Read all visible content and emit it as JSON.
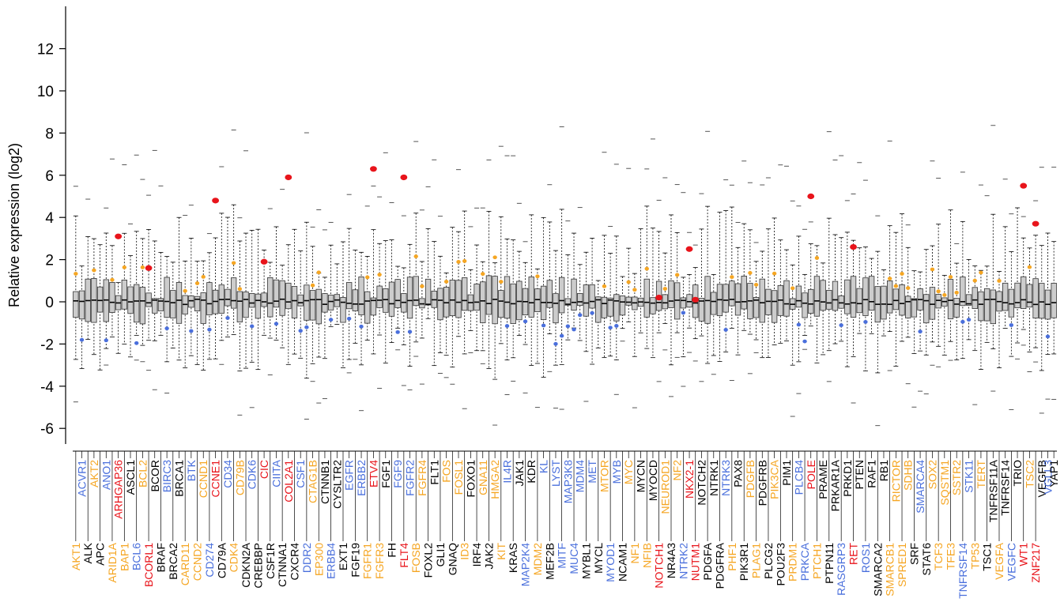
{
  "colors": {
    "black": "#000000",
    "blue": "#4a6fdc",
    "orange": "#f5a623",
    "red": "#e8141b",
    "box_fill": "#cccccc",
    "box_stroke": "#333333"
  },
  "chart_data": {
    "type": "box",
    "title": "",
    "xlabel": "",
    "ylabel": "Relative expression (log2)",
    "ylim": [
      -7,
      14
    ],
    "yticks": [
      -6,
      -4,
      -2,
      0,
      2,
      4,
      6,
      8,
      10,
      12
    ],
    "grid": false,
    "legend": "none",
    "genes_top": [
      {
        "name": "ACVR1",
        "color": "blue"
      },
      {
        "name": "AKT2",
        "color": "orange"
      },
      {
        "name": "ANO1",
        "color": "blue"
      },
      {
        "name": "ARHGAP36",
        "color": "red"
      },
      {
        "name": "ASCL1",
        "color": "black"
      },
      {
        "name": "BCL2",
        "color": "orange"
      },
      {
        "name": "BCOR",
        "color": "black"
      },
      {
        "name": "BIRC3",
        "color": "blue"
      },
      {
        "name": "BRCA1",
        "color": "black"
      },
      {
        "name": "BTK",
        "color": "blue"
      },
      {
        "name": "CCND1",
        "color": "orange"
      },
      {
        "name": "CCNE1",
        "color": "red"
      },
      {
        "name": "CD34",
        "color": "blue"
      },
      {
        "name": "CD79B",
        "color": "orange"
      },
      {
        "name": "CDK6",
        "color": "blue"
      },
      {
        "name": "CIC",
        "color": "red"
      },
      {
        "name": "CIITA",
        "color": "blue"
      },
      {
        "name": "COL2A1",
        "color": "red"
      },
      {
        "name": "CSF1",
        "color": "blue"
      },
      {
        "name": "CTAG1B",
        "color": "orange"
      },
      {
        "name": "CTNNB1",
        "color": "black"
      },
      {
        "name": "CYSLTR2",
        "color": "black"
      },
      {
        "name": "EGFR",
        "color": "blue"
      },
      {
        "name": "ERBB2",
        "color": "blue"
      },
      {
        "name": "ETV4",
        "color": "red"
      },
      {
        "name": "FGF1",
        "color": "black"
      },
      {
        "name": "FGF9",
        "color": "blue"
      },
      {
        "name": "FGFR2",
        "color": "blue"
      },
      {
        "name": "FGFR4",
        "color": "orange"
      },
      {
        "name": "FLT1",
        "color": "black"
      },
      {
        "name": "FOS",
        "color": "orange"
      },
      {
        "name": "FOSL1",
        "color": "orange"
      },
      {
        "name": "FOXO1",
        "color": "black"
      },
      {
        "name": "GNA11",
        "color": "orange"
      },
      {
        "name": "HMGA2",
        "color": "orange"
      },
      {
        "name": "IL4R",
        "color": "blue"
      },
      {
        "name": "JAK1",
        "color": "black"
      },
      {
        "name": "KDR",
        "color": "black"
      },
      {
        "name": "KL",
        "color": "blue"
      },
      {
        "name": "LYST",
        "color": "blue"
      },
      {
        "name": "MAP3K8",
        "color": "blue"
      },
      {
        "name": "MDM4",
        "color": "blue"
      },
      {
        "name": "MET",
        "color": "blue"
      },
      {
        "name": "MTOR",
        "color": "orange"
      },
      {
        "name": "MYB",
        "color": "blue"
      },
      {
        "name": "MYC",
        "color": "orange"
      },
      {
        "name": "MYCN",
        "color": "black"
      },
      {
        "name": "MYOCD",
        "color": "black"
      },
      {
        "name": "NEUROD1",
        "color": "orange"
      },
      {
        "name": "NF2",
        "color": "orange"
      },
      {
        "name": "NKX2-1",
        "color": "red"
      },
      {
        "name": "NOTCH2",
        "color": "black"
      },
      {
        "name": "NTRK1",
        "color": "black"
      },
      {
        "name": "NTRK3",
        "color": "blue"
      },
      {
        "name": "PAX8",
        "color": "black"
      },
      {
        "name": "PDGFB",
        "color": "orange"
      },
      {
        "name": "PDGFRB",
        "color": "black"
      },
      {
        "name": "PIK3CA",
        "color": "orange"
      },
      {
        "name": "PIM1",
        "color": "black"
      },
      {
        "name": "PLCB4",
        "color": "blue"
      },
      {
        "name": "POLE",
        "color": "red"
      },
      {
        "name": "PRAME",
        "color": "black"
      },
      {
        "name": "PRKAR1A",
        "color": "black"
      },
      {
        "name": "PRKD1",
        "color": "black"
      },
      {
        "name": "PTEN",
        "color": "black"
      },
      {
        "name": "RAF1",
        "color": "black"
      },
      {
        "name": "RB1",
        "color": "black"
      },
      {
        "name": "RICTOR",
        "color": "orange"
      },
      {
        "name": "SDHB",
        "color": "orange"
      },
      {
        "name": "SMARCA4",
        "color": "blue"
      },
      {
        "name": "SOX2",
        "color": "orange"
      },
      {
        "name": "SQSTM1",
        "color": "orange"
      },
      {
        "name": "SSTR2",
        "color": "orange"
      },
      {
        "name": "STK11",
        "color": "blue"
      },
      {
        "name": "TERT",
        "color": "orange"
      },
      {
        "name": "TNFRSF11A",
        "color": "black"
      },
      {
        "name": "TNFRSF14",
        "color": "black"
      },
      {
        "name": "TRIO",
        "color": "black"
      },
      {
        "name": "TSC2",
        "color": "orange"
      },
      {
        "name": "VEGFB",
        "color": "black"
      },
      {
        "name": "VGLL3",
        "color": "blue"
      },
      {
        "name": "YAP1",
        "color": "black"
      }
    ],
    "genes_bottom": [
      {
        "name": "AKT1",
        "color": "orange"
      },
      {
        "name": "ALK",
        "color": "black"
      },
      {
        "name": "APC",
        "color": "black"
      },
      {
        "name": "ARID1A",
        "color": "orange"
      },
      {
        "name": "BAP1",
        "color": "orange"
      },
      {
        "name": "BCL6",
        "color": "blue"
      },
      {
        "name": "BCORL1",
        "color": "red"
      },
      {
        "name": "BRAF",
        "color": "black"
      },
      {
        "name": "BRCA2",
        "color": "black"
      },
      {
        "name": "CARD11",
        "color": "orange"
      },
      {
        "name": "CCND2",
        "color": "orange"
      },
      {
        "name": "CD274",
        "color": "blue"
      },
      {
        "name": "CD79A",
        "color": "black"
      },
      {
        "name": "CDK4",
        "color": "orange"
      },
      {
        "name": "CDKN2A",
        "color": "black"
      },
      {
        "name": "CREBBP",
        "color": "black"
      },
      {
        "name": "CSF1R",
        "color": "black"
      },
      {
        "name": "CTNNA1",
        "color": "black"
      },
      {
        "name": "CXCR4",
        "color": "black"
      },
      {
        "name": "DDR2",
        "color": "blue"
      },
      {
        "name": "EP300",
        "color": "orange"
      },
      {
        "name": "ERBB4",
        "color": "blue"
      },
      {
        "name": "EXT1",
        "color": "black"
      },
      {
        "name": "FGF19",
        "color": "black"
      },
      {
        "name": "FGFR1",
        "color": "orange"
      },
      {
        "name": "FGFR3",
        "color": "orange"
      },
      {
        "name": "FH",
        "color": "black"
      },
      {
        "name": "FLT4",
        "color": "red"
      },
      {
        "name": "FOSB",
        "color": "orange"
      },
      {
        "name": "FOXL2",
        "color": "black"
      },
      {
        "name": "GLI1",
        "color": "black"
      },
      {
        "name": "GNAQ",
        "color": "black"
      },
      {
        "name": "ID3",
        "color": "orange"
      },
      {
        "name": "IRF4",
        "color": "black"
      },
      {
        "name": "JAK2",
        "color": "black"
      },
      {
        "name": "KIT",
        "color": "orange"
      },
      {
        "name": "KRAS",
        "color": "black"
      },
      {
        "name": "MAP2K4",
        "color": "blue"
      },
      {
        "name": "MDM2",
        "color": "orange"
      },
      {
        "name": "MEF2B",
        "color": "black"
      },
      {
        "name": "MITF",
        "color": "blue"
      },
      {
        "name": "MUC4",
        "color": "blue"
      },
      {
        "name": "MYBL1",
        "color": "black"
      },
      {
        "name": "MYCL",
        "color": "black"
      },
      {
        "name": "MYOD1",
        "color": "blue"
      },
      {
        "name": "NCAM1",
        "color": "black"
      },
      {
        "name": "NF1",
        "color": "orange"
      },
      {
        "name": "NFIB",
        "color": "orange"
      },
      {
        "name": "NOTCH1",
        "color": "red"
      },
      {
        "name": "NR4A3",
        "color": "black"
      },
      {
        "name": "NTRK2",
        "color": "blue"
      },
      {
        "name": "NUTM1",
        "color": "red"
      },
      {
        "name": "PDGFA",
        "color": "black"
      },
      {
        "name": "PDGFRA",
        "color": "black"
      },
      {
        "name": "PHF1",
        "color": "orange"
      },
      {
        "name": "PIK3R1",
        "color": "black"
      },
      {
        "name": "PLAG1",
        "color": "orange"
      },
      {
        "name": "PLCG2",
        "color": "black"
      },
      {
        "name": "POU2F3",
        "color": "black"
      },
      {
        "name": "PRDM1",
        "color": "orange"
      },
      {
        "name": "PRKCA",
        "color": "blue"
      },
      {
        "name": "PTCH1",
        "color": "orange"
      },
      {
        "name": "PTPN11",
        "color": "black"
      },
      {
        "name": "RASGRP3",
        "color": "blue"
      },
      {
        "name": "RET",
        "color": "red"
      },
      {
        "name": "ROS1",
        "color": "blue"
      },
      {
        "name": "SMARCA2",
        "color": "black"
      },
      {
        "name": "SMARCB1",
        "color": "orange"
      },
      {
        "name": "SPRED1",
        "color": "orange"
      },
      {
        "name": "SRF",
        "color": "black"
      },
      {
        "name": "STAT6",
        "color": "black"
      },
      {
        "name": "TCF3",
        "color": "orange"
      },
      {
        "name": "TFE3",
        "color": "orange"
      },
      {
        "name": "TNFRSF14",
        "color": "blue"
      },
      {
        "name": "TP53",
        "color": "orange"
      },
      {
        "name": "TSC1",
        "color": "black"
      },
      {
        "name": "VEGFA",
        "color": "orange"
      },
      {
        "name": "VEGFC",
        "color": "blue"
      },
      {
        "name": "WT1",
        "color": "red"
      },
      {
        "name": "ZNF217",
        "color": "red"
      }
    ],
    "highlight_points_red": [
      {
        "gene": "ARHGAP36",
        "y": 3.1
      },
      {
        "gene": "BCORL1",
        "y": 1.6
      },
      {
        "gene": "CCNE1",
        "y": 4.8
      },
      {
        "gene": "CIC",
        "y": 1.9
      },
      {
        "gene": "COL2A1",
        "y": 5.9
      },
      {
        "gene": "ETV4",
        "y": 6.3
      },
      {
        "gene": "FLT4",
        "y": 5.9
      },
      {
        "gene": "NOTCH1",
        "y": 0.2
      },
      {
        "gene": "NKX2-1",
        "y": 2.5
      },
      {
        "gene": "NUTM1",
        "y": 0.1
      },
      {
        "gene": "POLE",
        "y": 5.0
      },
      {
        "gene": "RET",
        "y": 2.6
      },
      {
        "gene": "WT1",
        "y": 5.5
      },
      {
        "gene": "ZNF217",
        "y": 3.7
      }
    ]
  }
}
